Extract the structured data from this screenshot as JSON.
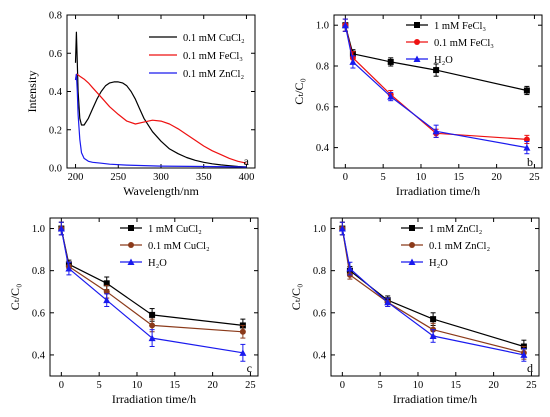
{
  "chart_data": [
    {
      "panel": "a",
      "type": "line",
      "xlabel": "Wavelength/nm",
      "ylabel": "Intensity",
      "xlim": [
        190,
        410
      ],
      "ylim": [
        0,
        0.8
      ],
      "xticks": [
        200,
        250,
        300,
        350,
        400
      ],
      "yticks": [
        0.0,
        0.2,
        0.4,
        0.6,
        0.8
      ],
      "legend_position": "top-right",
      "series": [
        {
          "name": "0.1 mM CuCl₂",
          "color": "#000000",
          "x": [
            200,
            201,
            202,
            203,
            205,
            207,
            210,
            215,
            220,
            225,
            230,
            235,
            240,
            245,
            250,
            255,
            260,
            265,
            270,
            275,
            280,
            290,
            300,
            310,
            320,
            330,
            340,
            350,
            360,
            370,
            380,
            390,
            400
          ],
          "y": [
            0.55,
            0.71,
            0.55,
            0.4,
            0.26,
            0.225,
            0.225,
            0.26,
            0.31,
            0.36,
            0.4,
            0.43,
            0.445,
            0.45,
            0.45,
            0.445,
            0.43,
            0.4,
            0.36,
            0.31,
            0.26,
            0.19,
            0.14,
            0.1,
            0.075,
            0.055,
            0.04,
            0.03,
            0.022,
            0.016,
            0.012,
            0.008,
            0.005
          ]
        },
        {
          "name": "0.1 mM FeCl₃",
          "color": "#ee1111",
          "x": [
            200,
            201,
            202,
            205,
            210,
            215,
            220,
            230,
            240,
            250,
            260,
            270,
            280,
            290,
            300,
            310,
            320,
            330,
            340,
            350,
            360,
            370,
            380,
            390,
            400
          ],
          "y": [
            0.46,
            0.49,
            0.49,
            0.48,
            0.465,
            0.445,
            0.42,
            0.37,
            0.32,
            0.28,
            0.245,
            0.23,
            0.24,
            0.25,
            0.245,
            0.23,
            0.205,
            0.175,
            0.145,
            0.115,
            0.09,
            0.07,
            0.05,
            0.035,
            0.025
          ]
        },
        {
          "name": "0.1 mM ZnCl₂",
          "color": "#1a1aee",
          "x": [
            200,
            201,
            202,
            203,
            205,
            207,
            210,
            215,
            220,
            230,
            240,
            260,
            300,
            350,
            400
          ],
          "y": [
            0.46,
            0.49,
            0.4,
            0.28,
            0.15,
            0.08,
            0.05,
            0.035,
            0.03,
            0.025,
            0.02,
            0.015,
            0.01,
            0.008,
            0.005
          ]
        }
      ]
    },
    {
      "panel": "b",
      "type": "line",
      "xlabel": "Irradiation time/h",
      "ylabel": "Cₜ/C₀",
      "xlim": [
        -1.5,
        26
      ],
      "ylim": [
        0.3,
        1.05
      ],
      "xticks": [
        0,
        5,
        10,
        15,
        20,
        25
      ],
      "yticks": [
        0.4,
        0.6,
        0.8,
        1.0
      ],
      "legend_position": "top-right",
      "series": [
        {
          "name": "1 mM    FeCl₃",
          "color": "#000000",
          "marker": "square",
          "x": [
            0,
            1,
            6,
            12,
            24
          ],
          "y": [
            1.0,
            0.86,
            0.82,
            0.78,
            0.68
          ],
          "err": [
            0.03,
            0.02,
            0.02,
            0.03,
            0.02
          ]
        },
        {
          "name": "0.1 mM  FeCl₃",
          "color": "#ee1111",
          "marker": "circle",
          "x": [
            0,
            1,
            6,
            12,
            24
          ],
          "y": [
            1.0,
            0.84,
            0.66,
            0.47,
            0.44
          ],
          "err": [
            0.03,
            0.03,
            0.02,
            0.02,
            0.02
          ]
        },
        {
          "name": "H₂O",
          "color": "#1a1aee",
          "marker": "triangle",
          "x": [
            0,
            1,
            6,
            12,
            24
          ],
          "y": [
            1.0,
            0.82,
            0.65,
            0.48,
            0.4
          ],
          "err": [
            0.03,
            0.03,
            0.02,
            0.03,
            0.03
          ]
        }
      ]
    },
    {
      "panel": "c",
      "type": "line",
      "xlabel": "Irradiation time/h",
      "ylabel": "Cₜ/C₀",
      "xlim": [
        -1.5,
        26
      ],
      "ylim": [
        0.3,
        1.05
      ],
      "xticks": [
        0,
        5,
        10,
        15,
        20,
        25
      ],
      "yticks": [
        0.4,
        0.6,
        0.8,
        1.0
      ],
      "legend_position": "top-right",
      "series": [
        {
          "name": "1 mM    CuCl₂",
          "color": "#000000",
          "marker": "square",
          "x": [
            0,
            1,
            6,
            12,
            24
          ],
          "y": [
            1.0,
            0.83,
            0.74,
            0.59,
            0.54
          ],
          "err": [
            0.03,
            0.02,
            0.03,
            0.03,
            0.03
          ]
        },
        {
          "name": "0.1 mM CuCl₂",
          "color": "#8b3a1a",
          "marker": "circle",
          "x": [
            0,
            1,
            6,
            12,
            24
          ],
          "y": [
            1.0,
            0.82,
            0.7,
            0.54,
            0.51
          ],
          "err": [
            0.03,
            0.02,
            0.03,
            0.03,
            0.03
          ]
        },
        {
          "name": "H₂O",
          "color": "#1a1aee",
          "marker": "triangle",
          "x": [
            0,
            1,
            6,
            12,
            24
          ],
          "y": [
            1.0,
            0.81,
            0.66,
            0.48,
            0.41
          ],
          "err": [
            0.03,
            0.03,
            0.03,
            0.04,
            0.04
          ]
        }
      ]
    },
    {
      "panel": "d",
      "type": "line",
      "xlabel": "Irradiation time/h",
      "ylabel": "Cₜ/C₀",
      "xlim": [
        -1.5,
        26
      ],
      "ylim": [
        0.3,
        1.05
      ],
      "xticks": [
        0,
        5,
        10,
        15,
        20,
        25
      ],
      "yticks": [
        0.4,
        0.6,
        0.8,
        1.0
      ],
      "legend_position": "top-right",
      "series": [
        {
          "name": "1 mM   ZnCl₂",
          "color": "#000000",
          "marker": "square",
          "x": [
            0,
            1,
            6,
            12,
            24
          ],
          "y": [
            1.0,
            0.8,
            0.66,
            0.57,
            0.44
          ],
          "err": [
            0.03,
            0.02,
            0.02,
            0.03,
            0.03
          ]
        },
        {
          "name": "0.1 mM ZnCl₂",
          "color": "#8b3a1a",
          "marker": "circle",
          "x": [
            0,
            1,
            6,
            12,
            24
          ],
          "y": [
            1.0,
            0.78,
            0.65,
            0.52,
            0.41
          ],
          "err": [
            0.03,
            0.02,
            0.02,
            0.03,
            0.03
          ]
        },
        {
          "name": "H₂O",
          "color": "#1a1aee",
          "marker": "triangle",
          "x": [
            0,
            1,
            6,
            12,
            24
          ],
          "y": [
            1.0,
            0.81,
            0.65,
            0.49,
            0.4
          ],
          "err": [
            0.03,
            0.03,
            0.02,
            0.03,
            0.03
          ]
        }
      ]
    }
  ]
}
